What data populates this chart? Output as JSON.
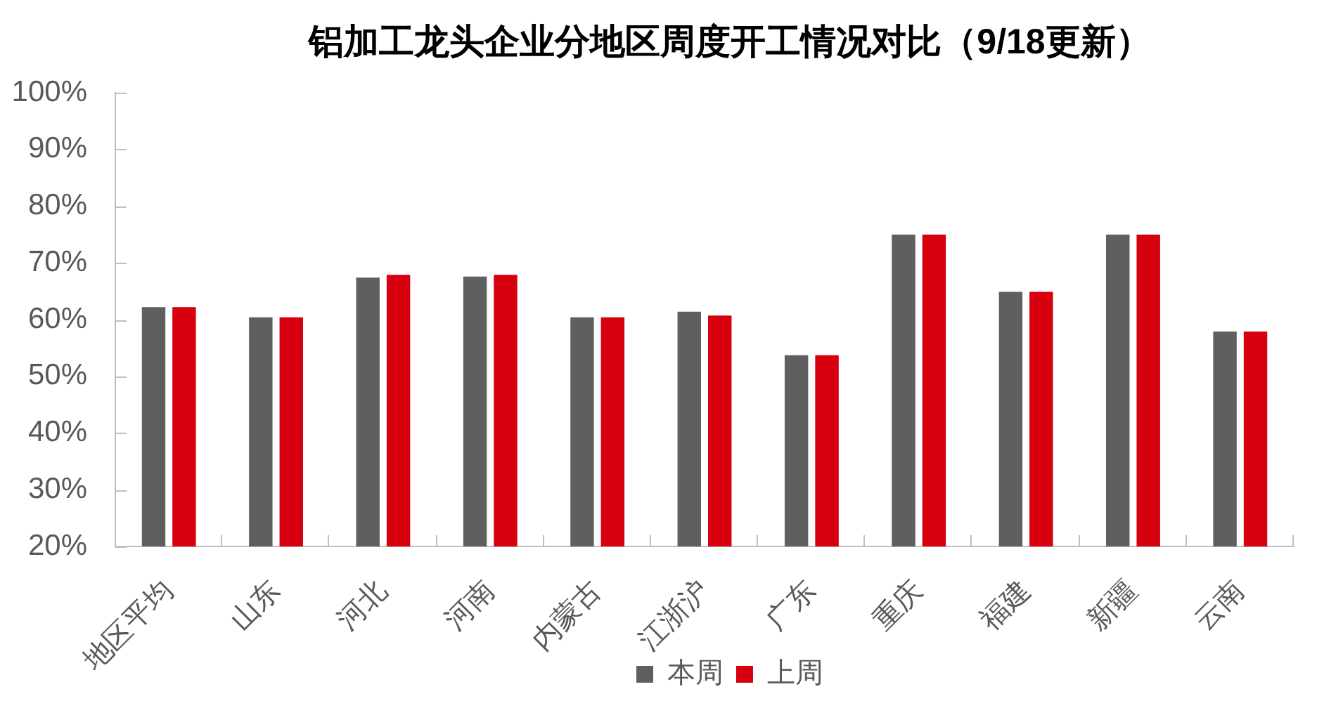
{
  "chart_data": {
    "type": "bar",
    "title": "铝加工龙头企业分地区周度开工情况对比（9/18更新）",
    "categories": [
      "地区平均",
      "山东",
      "河北",
      "河南",
      "内蒙古",
      "江浙沪",
      "广东",
      "重庆",
      "福建",
      "新疆",
      "云南"
    ],
    "series": [
      {
        "name": "本周",
        "color": "#5f5f5f",
        "values": [
          62.2,
          60.4,
          67.4,
          67.6,
          60.4,
          61.4,
          53.7,
          75,
          64.9,
          75,
          57.9
        ]
      },
      {
        "name": "上周",
        "color": "#d7000f",
        "values": [
          62.2,
          60.4,
          67.9,
          67.9,
          60.4,
          60.7,
          53.7,
          75,
          64.9,
          75,
          57.9
        ]
      }
    ],
    "ylim": [
      20,
      100
    ],
    "yticks": [
      {
        "value": 20,
        "label": "20%"
      },
      {
        "value": 30,
        "label": "30%"
      },
      {
        "value": 40,
        "label": "40%"
      },
      {
        "value": 50,
        "label": "50%"
      },
      {
        "value": 60,
        "label": "60%"
      },
      {
        "value": 70,
        "label": "70%"
      },
      {
        "value": 80,
        "label": "80%"
      },
      {
        "value": 90,
        "label": "90%"
      },
      {
        "value": 100,
        "label": "100%"
      }
    ],
    "grid": false,
    "legend": "bottom"
  }
}
